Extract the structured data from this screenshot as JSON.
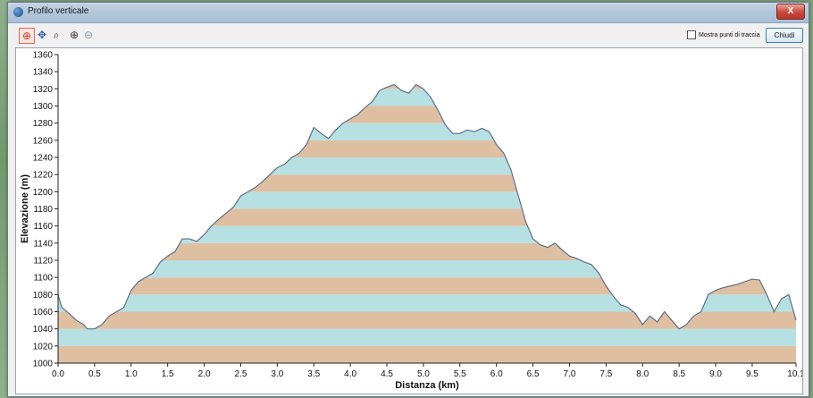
{
  "window": {
    "title": "Profilo verticale",
    "close_label": "X"
  },
  "toolbar": {
    "tools": [
      {
        "name": "select-tool-icon",
        "glyph": "⊕"
      },
      {
        "name": "pan-tool-icon",
        "glyph": "✥"
      },
      {
        "name": "zoom-box-icon",
        "glyph": "⌕"
      },
      {
        "name": "zoom-in-icon",
        "glyph": "⊕"
      },
      {
        "name": "zoom-out-icon",
        "glyph": "⊖"
      }
    ],
    "show_points_label": "Mostra punti di traccia",
    "show_points_checked": false,
    "close_button_label": "Chiudi"
  },
  "colors": {
    "band_tan": "#dfbfa2",
    "band_cyan": "#b7e0e3",
    "outline": "#5f6f86",
    "red_highlight": "#d94040"
  },
  "chart_data": {
    "type": "area",
    "xlabel": "Distanza  (km)",
    "ylabel": "Elevazione (m)",
    "xlim": [
      0,
      10.1
    ],
    "ylim": [
      1000,
      1360
    ],
    "x_ticks": [
      "0.0",
      "0.5",
      "1.0",
      "1.5",
      "2.0",
      "2.5",
      "3.0",
      "3.5",
      "4.0",
      "4.5",
      "5.0",
      "5.5",
      "6.0",
      "6.5",
      "7.0",
      "7.5",
      "8.0",
      "8.5",
      "9.0",
      "9.5",
      "10.1"
    ],
    "x_tick_values": [
      0,
      0.5,
      1,
      1.5,
      2,
      2.5,
      3,
      3.5,
      4,
      4.5,
      5,
      5.5,
      6,
      6.5,
      7,
      7.5,
      8,
      8.5,
      9,
      9.5,
      10.1
    ],
    "y_ticks": [
      1000,
      1020,
      1040,
      1060,
      1080,
      1100,
      1120,
      1140,
      1160,
      1180,
      1200,
      1220,
      1240,
      1260,
      1280,
      1300,
      1320,
      1340,
      1360
    ],
    "band_height": 20,
    "profile": [
      [
        0.0,
        1080
      ],
      [
        0.05,
        1065
      ],
      [
        0.15,
        1058
      ],
      [
        0.25,
        1050
      ],
      [
        0.35,
        1045
      ],
      [
        0.4,
        1040
      ],
      [
        0.5,
        1040
      ],
      [
        0.6,
        1045
      ],
      [
        0.7,
        1055
      ],
      [
        0.8,
        1060
      ],
      [
        0.9,
        1065
      ],
      [
        1.0,
        1085
      ],
      [
        1.1,
        1095
      ],
      [
        1.2,
        1100
      ],
      [
        1.3,
        1105
      ],
      [
        1.4,
        1118
      ],
      [
        1.5,
        1125
      ],
      [
        1.6,
        1130
      ],
      [
        1.7,
        1145
      ],
      [
        1.8,
        1145
      ],
      [
        1.9,
        1142
      ],
      [
        2.0,
        1150
      ],
      [
        2.1,
        1160
      ],
      [
        2.2,
        1168
      ],
      [
        2.3,
        1175
      ],
      [
        2.4,
        1182
      ],
      [
        2.5,
        1195
      ],
      [
        2.6,
        1200
      ],
      [
        2.7,
        1205
      ],
      [
        2.8,
        1212
      ],
      [
        2.9,
        1220
      ],
      [
        3.0,
        1228
      ],
      [
        3.1,
        1232
      ],
      [
        3.2,
        1240
      ],
      [
        3.3,
        1245
      ],
      [
        3.4,
        1255
      ],
      [
        3.5,
        1275
      ],
      [
        3.6,
        1268
      ],
      [
        3.7,
        1262
      ],
      [
        3.8,
        1272
      ],
      [
        3.9,
        1280
      ],
      [
        4.0,
        1285
      ],
      [
        4.1,
        1290
      ],
      [
        4.2,
        1298
      ],
      [
        4.3,
        1305
      ],
      [
        4.4,
        1318
      ],
      [
        4.5,
        1322
      ],
      [
        4.6,
        1325
      ],
      [
        4.7,
        1318
      ],
      [
        4.8,
        1315
      ],
      [
        4.9,
        1325
      ],
      [
        5.0,
        1320
      ],
      [
        5.1,
        1310
      ],
      [
        5.2,
        1295
      ],
      [
        5.3,
        1278
      ],
      [
        5.4,
        1268
      ],
      [
        5.5,
        1268
      ],
      [
        5.6,
        1272
      ],
      [
        5.7,
        1270
      ],
      [
        5.8,
        1274
      ],
      [
        5.9,
        1270
      ],
      [
        6.0,
        1255
      ],
      [
        6.1,
        1245
      ],
      [
        6.2,
        1225
      ],
      [
        6.3,
        1195
      ],
      [
        6.4,
        1165
      ],
      [
        6.5,
        1145
      ],
      [
        6.6,
        1138
      ],
      [
        6.7,
        1135
      ],
      [
        6.8,
        1140
      ],
      [
        6.9,
        1132
      ],
      [
        7.0,
        1125
      ],
      [
        7.1,
        1122
      ],
      [
        7.2,
        1118
      ],
      [
        7.3,
        1115
      ],
      [
        7.4,
        1105
      ],
      [
        7.5,
        1090
      ],
      [
        7.6,
        1078
      ],
      [
        7.7,
        1068
      ],
      [
        7.8,
        1065
      ],
      [
        7.9,
        1058
      ],
      [
        8.0,
        1045
      ],
      [
        8.1,
        1055
      ],
      [
        8.2,
        1048
      ],
      [
        8.3,
        1060
      ],
      [
        8.4,
        1050
      ],
      [
        8.5,
        1040
      ],
      [
        8.6,
        1045
      ],
      [
        8.7,
        1055
      ],
      [
        8.8,
        1060
      ],
      [
        8.9,
        1080
      ],
      [
        9.0,
        1085
      ],
      [
        9.1,
        1088
      ],
      [
        9.2,
        1090
      ],
      [
        9.3,
        1092
      ],
      [
        9.4,
        1095
      ],
      [
        9.5,
        1098
      ],
      [
        9.6,
        1097
      ],
      [
        9.7,
        1080
      ],
      [
        9.8,
        1060
      ],
      [
        9.9,
        1075
      ],
      [
        10.0,
        1080
      ],
      [
        10.1,
        1050
      ]
    ],
    "grid": false,
    "legend": "none"
  }
}
